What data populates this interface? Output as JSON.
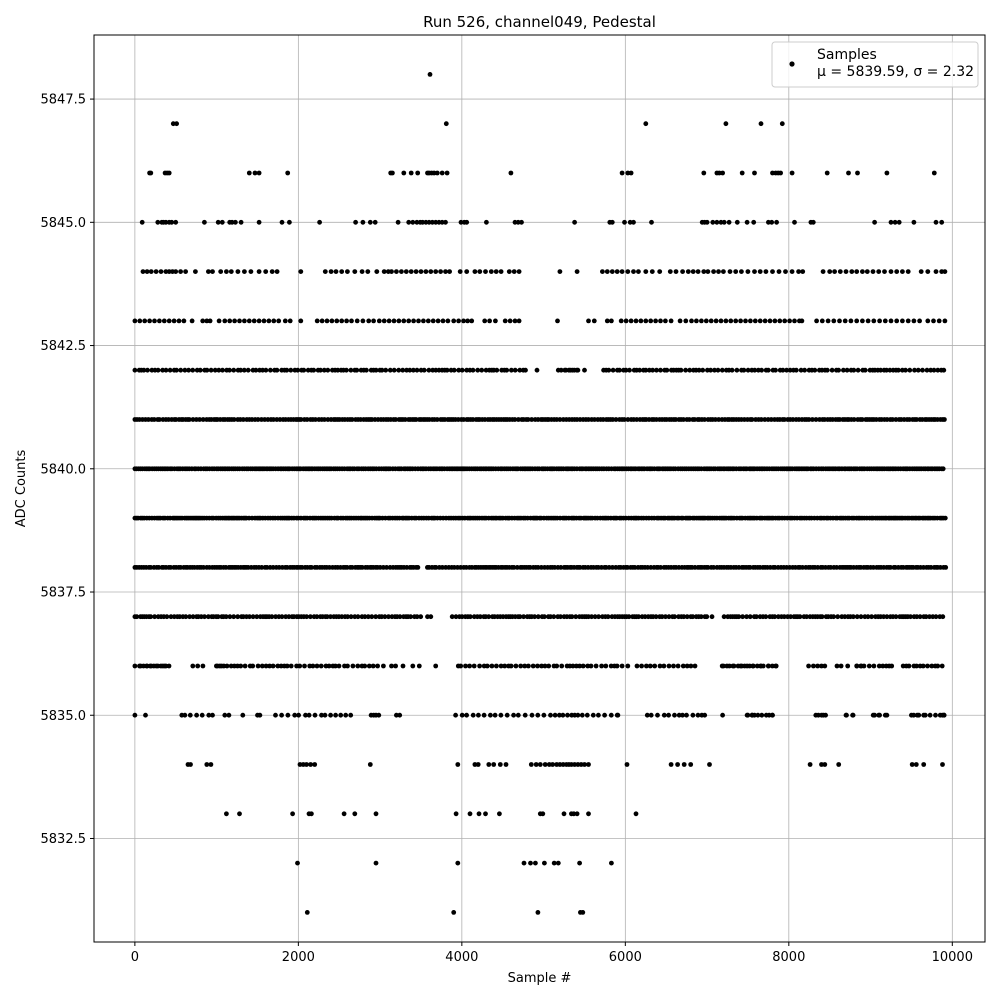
{
  "chart_data": {
    "type": "scatter",
    "title": "Run 526, channel049, Pedestal",
    "xlabel": "Sample #",
    "ylabel": "ADC Counts",
    "xlim": [
      -500,
      10400
    ],
    "ylim": [
      5830.4,
      5848.8
    ],
    "xticks": [
      0,
      2000,
      4000,
      6000,
      8000,
      10000
    ],
    "xtick_labels": [
      "0",
      "2000",
      "4000",
      "6000",
      "8000",
      "10000"
    ],
    "yticks": [
      5832.5,
      5835.0,
      5837.5,
      5840.0,
      5842.5,
      5845.0,
      5847.5
    ],
    "ytick_labels": [
      "5832.5",
      "5835.0",
      "5837.5",
      "5840.0",
      "5842.5",
      "5845.0",
      "5847.5"
    ],
    "grid": true,
    "legend_position": "top-right",
    "marker_color": "#000000",
    "series": [
      {
        "name": "Samples",
        "legend_lines": [
          "Samples",
          "μ = 5839.59, σ = 2.32"
        ],
        "x_range": [
          0,
          9920
        ],
        "count_per_level_reference": "dense rows at 5837-5842, sparse at tails",
        "levels": [
          {
            "y": 5848,
            "points": [
              3610
            ]
          },
          {
            "y": 5847,
            "points": [
              470,
              510,
              3810,
              6250,
              7230,
              7660,
              7920
            ]
          },
          {
            "y": 5846,
            "points": [
              180,
              195,
              370,
              395,
              420,
              1400,
              1470,
              1520,
              1870,
              3130,
              3150,
              3290,
              3380,
              3460,
              3580,
              3600,
              3630,
              3660,
              3700,
              3760,
              3820,
              4600,
              5960,
              6030,
              6070,
              6960,
              7120,
              7150,
              7190,
              7430,
              7580,
              7800,
              7840,
              7870,
              7900,
              8040,
              8470,
              8730,
              8840,
              9200,
              9780
            ]
          },
          {
            "y": 5845,
            "points": [
              90,
              280,
              330,
              350,
              380,
              420,
              450,
              500,
              850,
              1020,
              1070,
              1160,
              1190,
              1230,
              1300,
              1520,
              1800,
              1890,
              2260,
              2700,
              2790,
              2880,
              2940,
              3220,
              3350,
              3400,
              3450,
              3490,
              3520,
              3560,
              3600,
              3640,
              3680,
              3720,
              3760,
              3800,
              3990,
              4030,
              4060,
              4300,
              4650,
              4690,
              4730,
              5380,
              5810,
              5840,
              5990,
              6060,
              6100,
              6320,
              6940,
              6970,
              7000,
              7070,
              7120,
              7170,
              7210,
              7270,
              7370,
              7490,
              7570,
              7750,
              7790,
              7850,
              8070,
              8270,
              8300,
              9050,
              9250,
              9300,
              9350,
              9530,
              9800,
              9870
            ]
          },
          {
            "y": 5844,
            "points": [
              100,
              150,
              200,
              260,
              320,
              380,
              420,
              460,
              500,
              560,
              620,
              740,
              900,
              950,
              1050,
              1120,
              1180,
              1260,
              1340,
              1420,
              1520,
              1600,
              1680,
              1740,
              2030,
              2330,
              2400,
              2460,
              2530,
              2600,
              2690,
              2780,
              2850,
              2960,
              3050,
              3100,
              3140,
              3200,
              3260,
              3320,
              3380,
              3440,
              3500,
              3560,
              3620,
              3680,
              3740,
              3800,
              3850,
              3980,
              4060,
              4160,
              4220,
              4290,
              4360,
              4420,
              4480,
              4580,
              4640,
              4700,
              5200,
              5410,
              5720,
              5780,
              5840,
              5900,
              5960,
              6030,
              6100,
              6160,
              6250,
              6330,
              6420,
              6550,
              6620,
              6700,
              6770,
              6830,
              6890,
              6960,
              7010,
              7080,
              7140,
              7200,
              7280,
              7350,
              7420,
              7500,
              7580,
              7650,
              7720,
              7800,
              7880,
              7960,
              8040,
              8120,
              8170,
              8420,
              8500,
              8560,
              8630,
              8700,
              8770,
              8830,
              8900,
              8960,
              9030,
              9100,
              9170,
              9250,
              9320,
              9390,
              9460,
              9620,
              9700,
              9800,
              9870,
              9910
            ]
          },
          {
            "y": 5843,
            "points": [
              0,
              60,
              120,
              180,
              240,
              300,
              360,
              420,
              480,
              540,
              600,
              700,
              830,
              880,
              920,
              1030,
              1100,
              1160,
              1220,
              1280,
              1340,
              1400,
              1460,
              1520,
              1580,
              1640,
              1700,
              1760,
              1840,
              1900,
              2030,
              2230,
              2290,
              2350,
              2410,
              2470,
              2530,
              2590,
              2650,
              2720,
              2790,
              2860,
              2920,
              2990,
              3050,
              3110,
              3170,
              3230,
              3290,
              3350,
              3410,
              3470,
              3530,
              3590,
              3650,
              3710,
              3770,
              3830,
              3900,
              3960,
              4020,
              4070,
              4120,
              4280,
              4340,
              4410,
              4530,
              4590,
              4650,
              4700,
              5170,
              5550,
              5620,
              5780,
              5830,
              5950,
              6010,
              6070,
              6130,
              6190,
              6250,
              6310,
              6370,
              6430,
              6490,
              6560,
              6670,
              6740,
              6810,
              6870,
              6930,
              6990,
              7050,
              7110,
              7170,
              7230,
              7290,
              7350,
              7410,
              7470,
              7530,
              7590,
              7650,
              7710,
              7770,
              7830,
              7890,
              7950,
              8010,
              8070,
              8130,
              8160,
              8340,
              8410,
              8480,
              8550,
              8620,
              8690,
              8760,
              8830,
              8900,
              8970,
              9040,
              9110,
              9180,
              9250,
              9320,
              9390,
              9460,
              9530,
              9600,
              9700,
              9770,
              9840,
              9910
            ]
          }
        ],
        "dense_levels": [
          {
            "y": 5842,
            "x_start": 0,
            "x_end": 9920,
            "step": 42,
            "gaps": [
              [
                4800,
                5180
              ],
              [
                5420,
                5700
              ]
            ],
            "sparse": [
              4920,
              5180,
              5260,
              5310,
              5420,
              5500
            ]
          },
          {
            "y": 5841,
            "x_start": 0,
            "x_end": 9920,
            "step": 32,
            "gaps": [],
            "sparse": []
          },
          {
            "y": 5840,
            "x_start": 0,
            "x_end": 9920,
            "step": 24,
            "gaps": [],
            "sparse": []
          },
          {
            "y": 5839,
            "x_start": 0,
            "x_end": 9920,
            "step": 26,
            "gaps": [],
            "sparse": []
          },
          {
            "y": 5838,
            "x_start": 0,
            "x_end": 9920,
            "step": 30,
            "gaps": [
              [
                3480,
                3560
              ]
            ],
            "sparse": []
          },
          {
            "y": 5837,
            "x_start": 0,
            "x_end": 9920,
            "step": 36,
            "gaps": [
              [
                3500,
                3850
              ],
              [
                7000,
                7180
              ]
            ],
            "sparse": [
              3580,
              3620,
              7060
            ]
          },
          {
            "y": 5836,
            "x_start": 0,
            "x_end": 9920,
            "step": 48,
            "gaps": [
              [
                440,
                650
              ],
              [
                860,
                960
              ],
              [
                3000,
                3900
              ],
              [
                6000,
                6100
              ],
              [
                6860,
                7180
              ],
              [
                7850,
                8230
              ],
              [
                8480,
                8800
              ],
              [
                9300,
                9360
              ]
            ],
            "sparse": [
              70,
              150,
              200,
              280,
              340,
              380,
              1010,
              1060,
              3040,
              3140,
              3190,
              3280,
              3400,
              3480,
              3680,
              6030,
              7200,
              7330,
              7410,
              7490,
              7560,
              7660,
              7750,
              7840,
              8590,
              8640,
              8720,
              8830,
              8880
            ]
          },
          {
            "y": 5835,
            "x_start": 0,
            "x_end": 9920,
            "step": 60,
            "gaps": [
              [
                0,
                500
              ],
              [
                1000,
                1760
              ],
              [
                2700,
                2850
              ],
              [
                3000,
                3880
              ],
              [
                5950,
                6250
              ],
              [
                7000,
                7450
              ],
              [
                7820,
                8310
              ],
              [
                8450,
                8700
              ],
              [
                8800,
                9000
              ],
              [
                9150,
                9450
              ]
            ],
            "sparse": [
              0,
              130,
              1100,
              1150,
              1320,
              1500,
              1530,
              1720,
              2890,
              2950,
              3200,
              3240,
              5900,
              7190,
              7500,
              7550,
              7580,
              7760,
              7800,
              8330,
              8400,
              8450,
              8700,
              8780,
              9050,
              9100,
              9180,
              9200,
              9500,
              9570,
              9650,
              9880,
              9900
            ]
          },
          {
            "y": 5834,
            "x_start": 0,
            "x_end": 0,
            "step": 0,
            "gaps": [],
            "sparse": [
              650,
              680,
              880,
              930,
              2020,
              2060,
              2100,
              2150,
              2200,
              2880,
              3950,
              4160,
              4200,
              4330,
              4390,
              4470,
              4540,
              4850,
              4910,
              4960,
              5020,
              5070,
              5110,
              5160,
              5200,
              5240,
              5280,
              5310,
              5340,
              5380,
              5420,
              5460,
              5500,
              5550,
              6020,
              6560,
              6640,
              6720,
              6800,
              7030,
              8260,
              8400,
              8440,
              8610,
              9510,
              9560,
              9650,
              9880
            ]
          },
          {
            "y": 5833,
            "x_start": 0,
            "x_end": 0,
            "step": 0,
            "gaps": [],
            "sparse": [
              1120,
              1280,
              1930,
              2130,
              2160,
              2560,
              2690,
              2950,
              3930,
              4100,
              4210,
              4290,
              4460,
              4960,
              4990,
              5250,
              5340,
              5370,
              5410,
              5550,
              6130
            ]
          },
          {
            "y": 5832,
            "x_start": 0,
            "x_end": 0,
            "step": 0,
            "gaps": [],
            "sparse": [
              1990,
              2950,
              3950,
              4760,
              4840,
              4900,
              5010,
              5130,
              5180,
              5440,
              5830
            ]
          },
          {
            "y": 5831,
            "x_start": 0,
            "x_end": 0,
            "step": 0,
            "gaps": [],
            "sparse": [
              2110,
              3900,
              4930,
              5450,
              5480
            ]
          }
        ]
      }
    ]
  }
}
